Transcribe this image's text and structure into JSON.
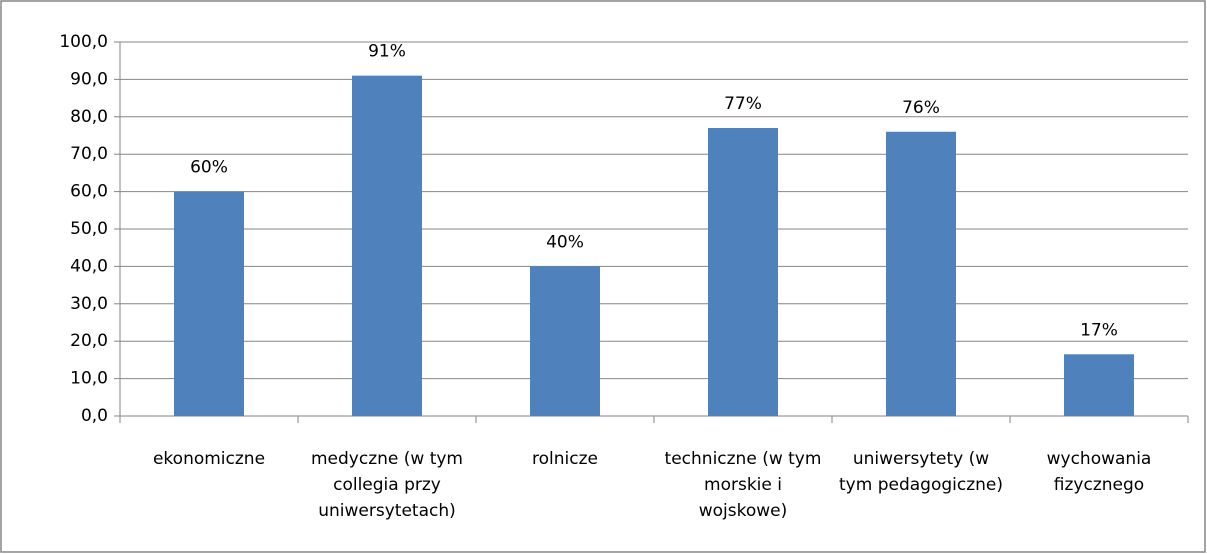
{
  "chart_data": {
    "type": "bar",
    "categories": [
      "ekonomiczne",
      "medyczne (w tym collegia przy uniwersytetach)",
      "rolnicze",
      "techniczne (w tym morskie i wojskowe)",
      "uniwersytety (w tym pedagogiczne)",
      "wychowania fizycznego"
    ],
    "values": [
      60,
      91,
      40,
      77,
      76,
      16.5
    ],
    "value_labels": [
      "60%",
      "91%",
      "40%",
      "77%",
      "76%",
      "17%"
    ],
    "color": "#4f81bd",
    "ylim": [
      0,
      100
    ],
    "yticks": [
      {
        "value": 0,
        "label": "0,0"
      },
      {
        "value": 10,
        "label": "10,0"
      },
      {
        "value": 20,
        "label": "20,0"
      },
      {
        "value": 30,
        "label": "30,0"
      },
      {
        "value": 40,
        "label": "40,0"
      },
      {
        "value": 50,
        "label": "50,0"
      },
      {
        "value": 60,
        "label": "60,0"
      },
      {
        "value": 70,
        "label": "70,0"
      },
      {
        "value": 80,
        "label": "80,0"
      },
      {
        "value": 90,
        "label": "90,0"
      },
      {
        "value": 100,
        "label": "100,0"
      }
    ],
    "grid": true
  }
}
